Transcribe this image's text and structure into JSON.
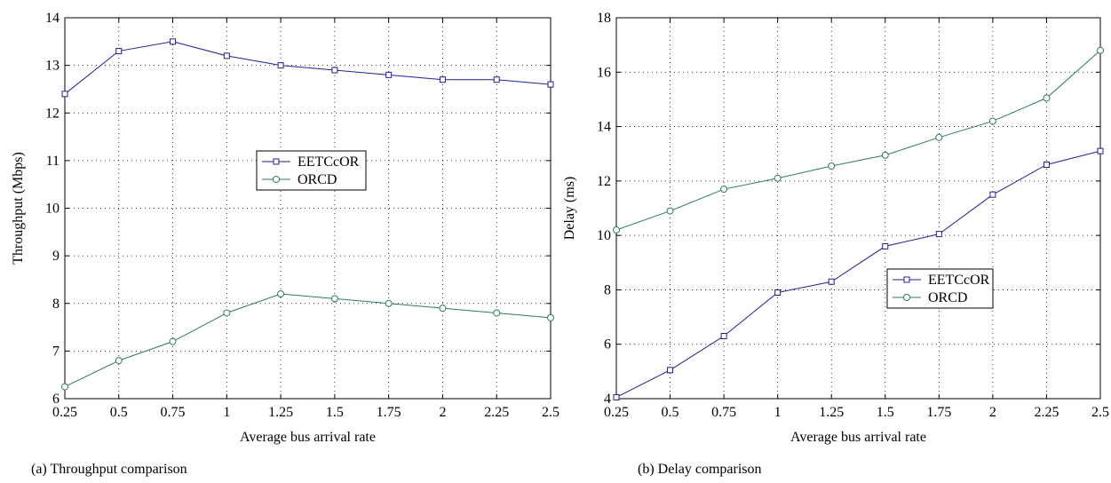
{
  "charts": [
    {
      "caption": "(a) Throughput comparison",
      "chart_data": {
        "type": "line",
        "title": "",
        "xlabel": "Average bus arrival rate",
        "ylabel": "Throughput (Mbps)",
        "x": [
          0.25,
          0.5,
          0.75,
          1,
          1.25,
          1.5,
          1.75,
          2,
          2.25,
          2.5
        ],
        "x_tick_labels": [
          "0.25",
          "0.5",
          "0.75",
          "1",
          "1.25",
          "1.5",
          "1.75",
          "2",
          "2.25",
          "2.5"
        ],
        "xlim": [
          0.25,
          2.5
        ],
        "ylim": [
          6,
          14
        ],
        "y_ticks": [
          6,
          7,
          8,
          9,
          10,
          11,
          12,
          13,
          14
        ],
        "grid": true,
        "legend_position": "center-right",
        "series": [
          {
            "name": "EETCcOR",
            "color": "#1f1f9a",
            "marker": "square",
            "values": [
              12.4,
              13.3,
              13.5,
              13.2,
              13.0,
              12.9,
              12.8,
              12.7,
              12.7,
              12.6
            ]
          },
          {
            "name": "ORCD",
            "color": "#2e7d52",
            "marker": "circle",
            "values": [
              6.25,
              6.8,
              7.2,
              7.8,
              8.2,
              8.1,
              8.0,
              7.9,
              7.8,
              7.7
            ]
          }
        ]
      }
    },
    {
      "caption": "(b) Delay comparison",
      "chart_data": {
        "type": "line",
        "title": "",
        "xlabel": "Average bus arrival rate",
        "ylabel": "Delay (ms)",
        "x": [
          0.25,
          0.5,
          0.75,
          1,
          1.25,
          1.5,
          1.75,
          2,
          2.25,
          2.5
        ],
        "x_tick_labels": [
          "0.25",
          "0.5",
          "0.75",
          "1",
          "1.25",
          "1.5",
          "1.75",
          "2",
          "2.25",
          "2.5"
        ],
        "xlim": [
          0.25,
          2.5
        ],
        "ylim": [
          4,
          18
        ],
        "y_ticks": [
          4,
          6,
          8,
          10,
          12,
          14,
          16,
          18
        ],
        "grid": true,
        "legend_position": "lower-right",
        "series": [
          {
            "name": "EETCcOR",
            "color": "#1f1f9a",
            "marker": "square",
            "values": [
              4.05,
              5.05,
              6.3,
              7.9,
              8.3,
              9.6,
              10.05,
              11.5,
              12.6,
              13.1
            ]
          },
          {
            "name": "ORCD",
            "color": "#2e7d52",
            "marker": "circle",
            "values": [
              10.2,
              10.9,
              11.7,
              12.1,
              12.55,
              12.95,
              13.6,
              14.2,
              15.05,
              16.8
            ]
          }
        ]
      }
    }
  ]
}
